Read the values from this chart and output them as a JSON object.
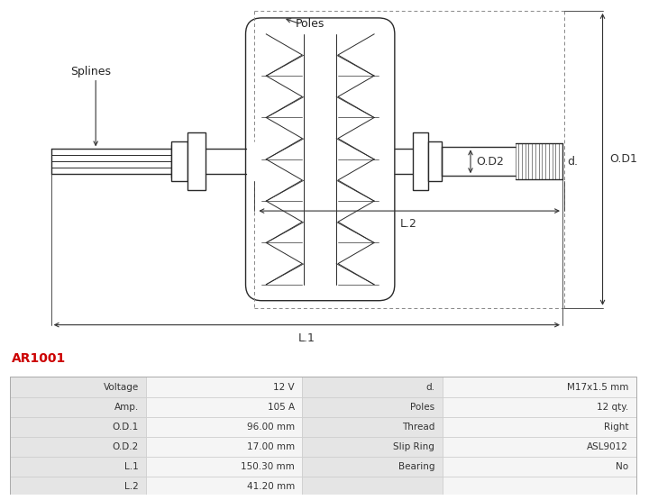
{
  "title": "AR1001",
  "title_color": "#cc0000",
  "bg_color": "#ffffff",
  "table_data": [
    [
      "Voltage",
      "12 V",
      "d.",
      "M17x1.5 mm"
    ],
    [
      "Amp.",
      "105 A",
      "Poles",
      "12 qty."
    ],
    [
      "O.D.1",
      "96.00 mm",
      "Thread",
      "Right"
    ],
    [
      "O.D.2",
      "17.00 mm",
      "Slip Ring",
      "ASL9012"
    ],
    [
      "L.1",
      "150.30 mm",
      "Bearing",
      "No"
    ],
    [
      "L.2",
      "41.20 mm",
      "",
      ""
    ]
  ],
  "diagram": {
    "splines_label": "Splines",
    "poles_label": "Poles",
    "od1_label": "O.D1",
    "od2_label": "O.D2",
    "d_label": "d.",
    "l1_label": "L.1",
    "l2_label": "L.2"
  }
}
